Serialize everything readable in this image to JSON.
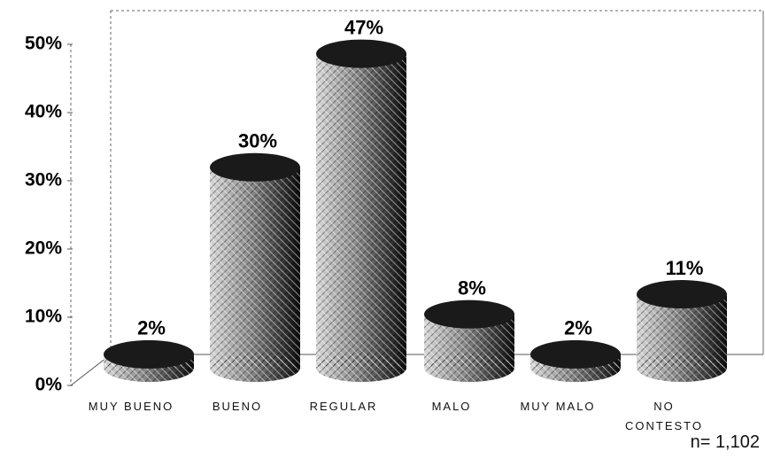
{
  "chart_data": {
    "type": "bar",
    "categories": [
      "MUY BUENO",
      "BUENO",
      "REGULAR",
      "MALO",
      "MUY MALO",
      "NO CONTESTO"
    ],
    "values": [
      2,
      30,
      47,
      8,
      2,
      11
    ],
    "value_labels": [
      "2%",
      "30%",
      "47%",
      "8%",
      "2%",
      "11%"
    ],
    "color": "#1a1a1a",
    "ylim": [
      0,
      50
    ],
    "yticks": [
      {
        "value": 0,
        "label": "0%"
      },
      {
        "value": 10,
        "label": "10%"
      },
      {
        "value": 20,
        "label": "20%"
      },
      {
        "value": 30,
        "label": "30%"
      },
      {
        "value": 40,
        "label": "40%"
      },
      {
        "value": 50,
        "label": "50%"
      }
    ],
    "annotation": "n= 1,102"
  }
}
